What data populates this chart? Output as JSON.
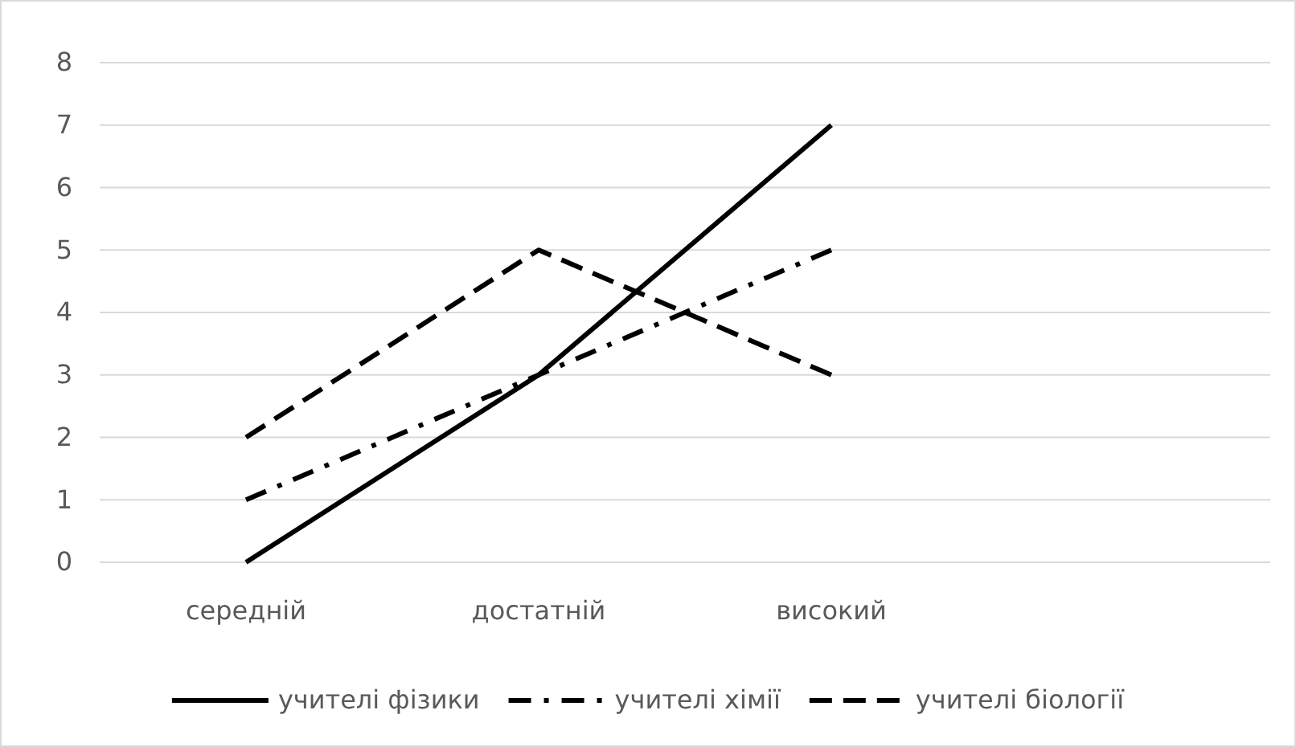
{
  "chart_data": {
    "type": "line",
    "categories": [
      "середній",
      "достатній",
      "високий",
      null
    ],
    "series": [
      {
        "name": "учителі фізики",
        "color": "#000000",
        "line_style": "solid",
        "values": [
          0,
          3,
          7,
          null
        ]
      },
      {
        "name": "учителі хімії",
        "color": "#000000",
        "line_style": "dashdot",
        "values": [
          1,
          3,
          5,
          null
        ]
      },
      {
        "name": "учителі біології",
        "color": "#000000",
        "line_style": "dashed",
        "values": [
          2,
          5,
          3,
          null
        ]
      }
    ],
    "ylim": [
      0,
      8
    ],
    "yticks": [
      0,
      1,
      2,
      3,
      4,
      5,
      6,
      7,
      8
    ],
    "grid": "y",
    "legend": "bottom",
    "marker": "none"
  }
}
